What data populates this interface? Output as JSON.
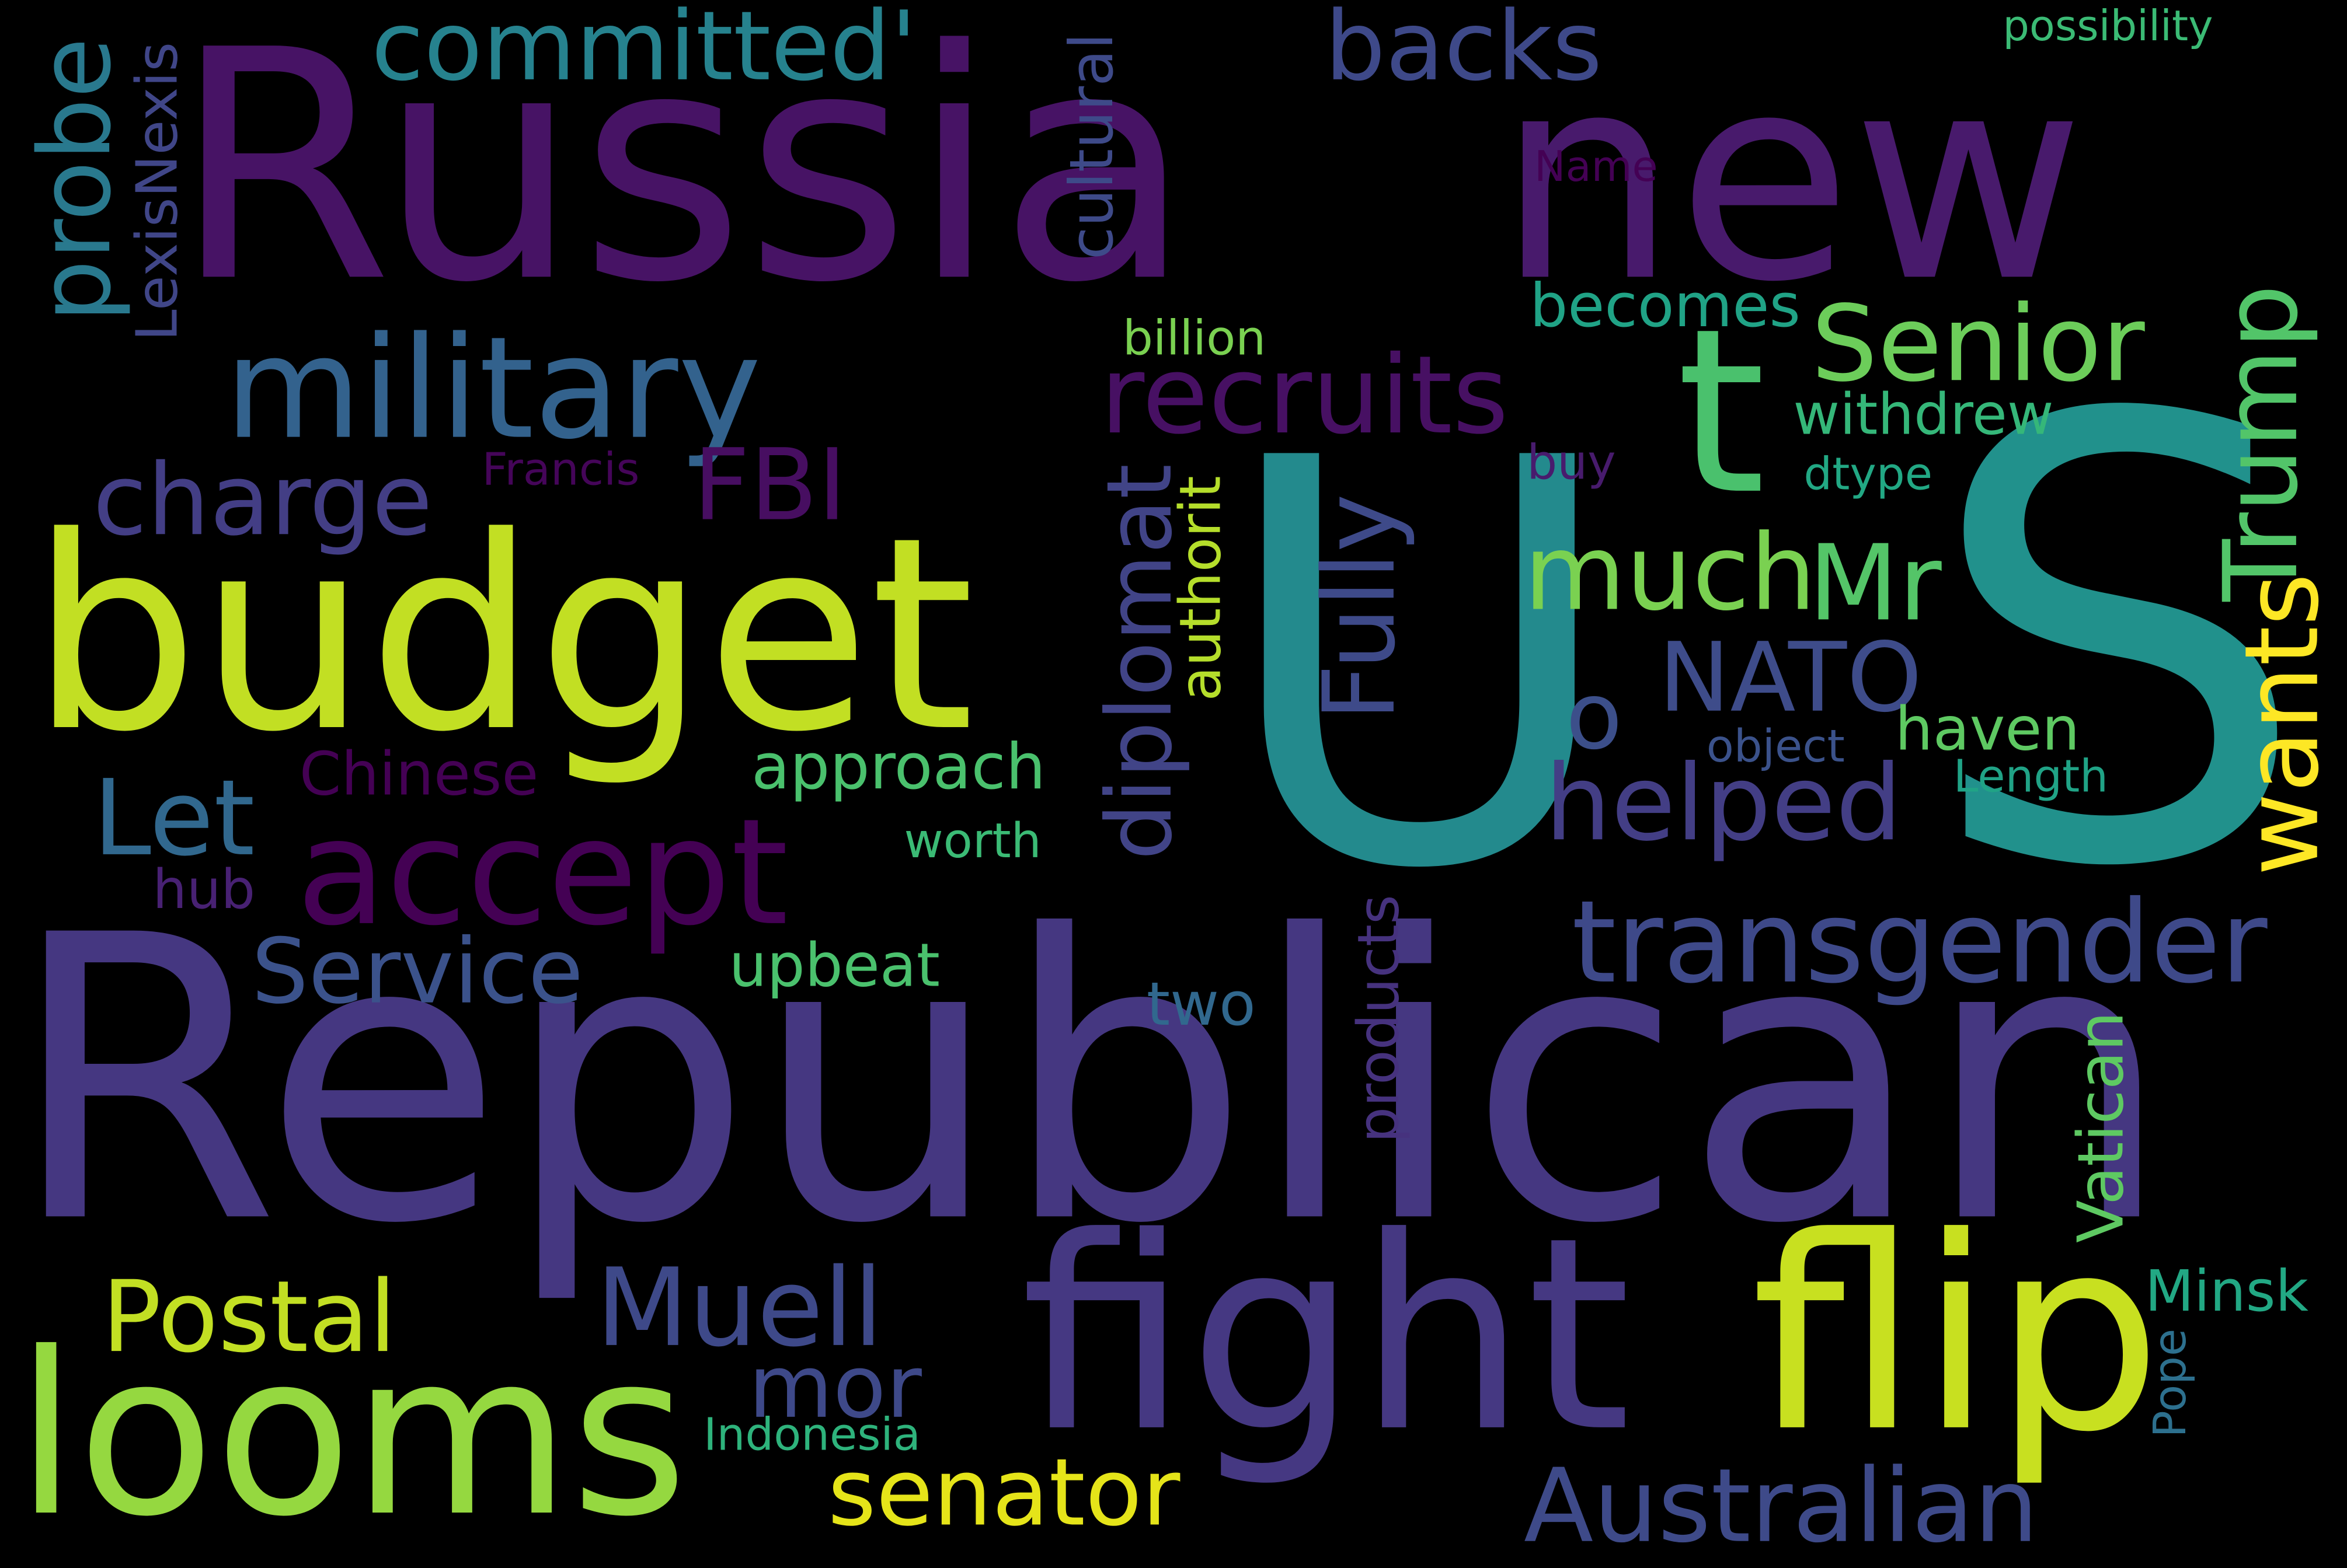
{
  "words": [
    {
      "text": "Russia",
      "color": "#471365"
    },
    {
      "text": "new",
      "color": "#481a6c"
    },
    {
      "text": "U",
      "color": "#238a8d"
    },
    {
      "text": "S",
      "color": "#21918c"
    },
    {
      "text": "Republican",
      "color": "#453781"
    },
    {
      "text": "budget",
      "color": "#c2df23"
    },
    {
      "text": "fight",
      "color": "#453882"
    },
    {
      "text": "flip",
      "color": "#c8e020"
    },
    {
      "text": "looms",
      "color": "#95d840"
    },
    {
      "text": "military",
      "color": "#33628d"
    },
    {
      "text": "accept",
      "color": "#440154"
    },
    {
      "text": "t",
      "color": "#4ac16d"
    },
    {
      "text": "recruits",
      "color": "#471063"
    },
    {
      "text": "committed'",
      "color": "#26828e"
    },
    {
      "text": "backs",
      "color": "#3e4989"
    },
    {
      "text": "possibility",
      "color": "#3bbb75"
    },
    {
      "text": "probe",
      "color": "#29798e"
    },
    {
      "text": "LexisNexis",
      "color": "#404688"
    },
    {
      "text": "cultural",
      "color": "#3e4a89"
    },
    {
      "text": "Name",
      "color": "#440154"
    },
    {
      "text": "billion",
      "color": "#7ad151"
    },
    {
      "text": "becomes",
      "color": "#20a386"
    },
    {
      "text": "Senior",
      "color": "#6ccd5a"
    },
    {
      "text": "Trump",
      "color": "#52c569"
    },
    {
      "text": "withdrew",
      "color": "#35b779"
    },
    {
      "text": "FBI",
      "color": "#470e61"
    },
    {
      "text": "Francis",
      "color": "#450559"
    },
    {
      "text": "buy",
      "color": "#481b6d"
    },
    {
      "text": "dtype",
      "color": "#22a884"
    },
    {
      "text": "charge",
      "color": "#433e85"
    },
    {
      "text": "much",
      "color": "#7ad151"
    },
    {
      "text": "Mr",
      "color": "#54c568"
    },
    {
      "text": "diplomat",
      "color": "#414487"
    },
    {
      "text": "Fully",
      "color": "#3e4a89"
    },
    {
      "text": "authorit",
      "color": "#b5de2b"
    },
    {
      "text": "wants",
      "color": "#fde725"
    },
    {
      "text": "NATO",
      "color": "#3e4c8a"
    },
    {
      "text": "o",
      "color": "#3c4f8a"
    },
    {
      "text": "haven",
      "color": "#5ec962"
    },
    {
      "text": "object",
      "color": "#3b528b"
    },
    {
      "text": "Length",
      "color": "#20a386"
    },
    {
      "text": "helped",
      "color": "#433e85"
    },
    {
      "text": "Let",
      "color": "#31688e"
    },
    {
      "text": "Chinese",
      "color": "#440154"
    },
    {
      "text": "approach",
      "color": "#4ac16d"
    },
    {
      "text": "worth",
      "color": "#3bbb75"
    },
    {
      "text": "hub",
      "color": "#482173"
    },
    {
      "text": "Service",
      "color": "#3b528b"
    },
    {
      "text": "upbeat",
      "color": "#4ac16d"
    },
    {
      "text": "two",
      "color": "#31688e"
    },
    {
      "text": "products",
      "color": "#46327e"
    },
    {
      "text": "transgender",
      "color": "#3e4989"
    },
    {
      "text": "Vatican",
      "color": "#5ec962"
    },
    {
      "text": "Minsk",
      "color": "#22a884"
    },
    {
      "text": "Pope",
      "color": "#2d708e"
    },
    {
      "text": "Postal",
      "color": "#c2df23"
    },
    {
      "text": "Muell",
      "color": "#3e4989"
    },
    {
      "text": "mor",
      "color": "#3e4989"
    },
    {
      "text": "senator",
      "color": "#e5e419"
    },
    {
      "text": "Indonesia",
      "color": "#2eb37c"
    },
    {
      "text": "Australian",
      "color": "#3e4a89"
    }
  ]
}
